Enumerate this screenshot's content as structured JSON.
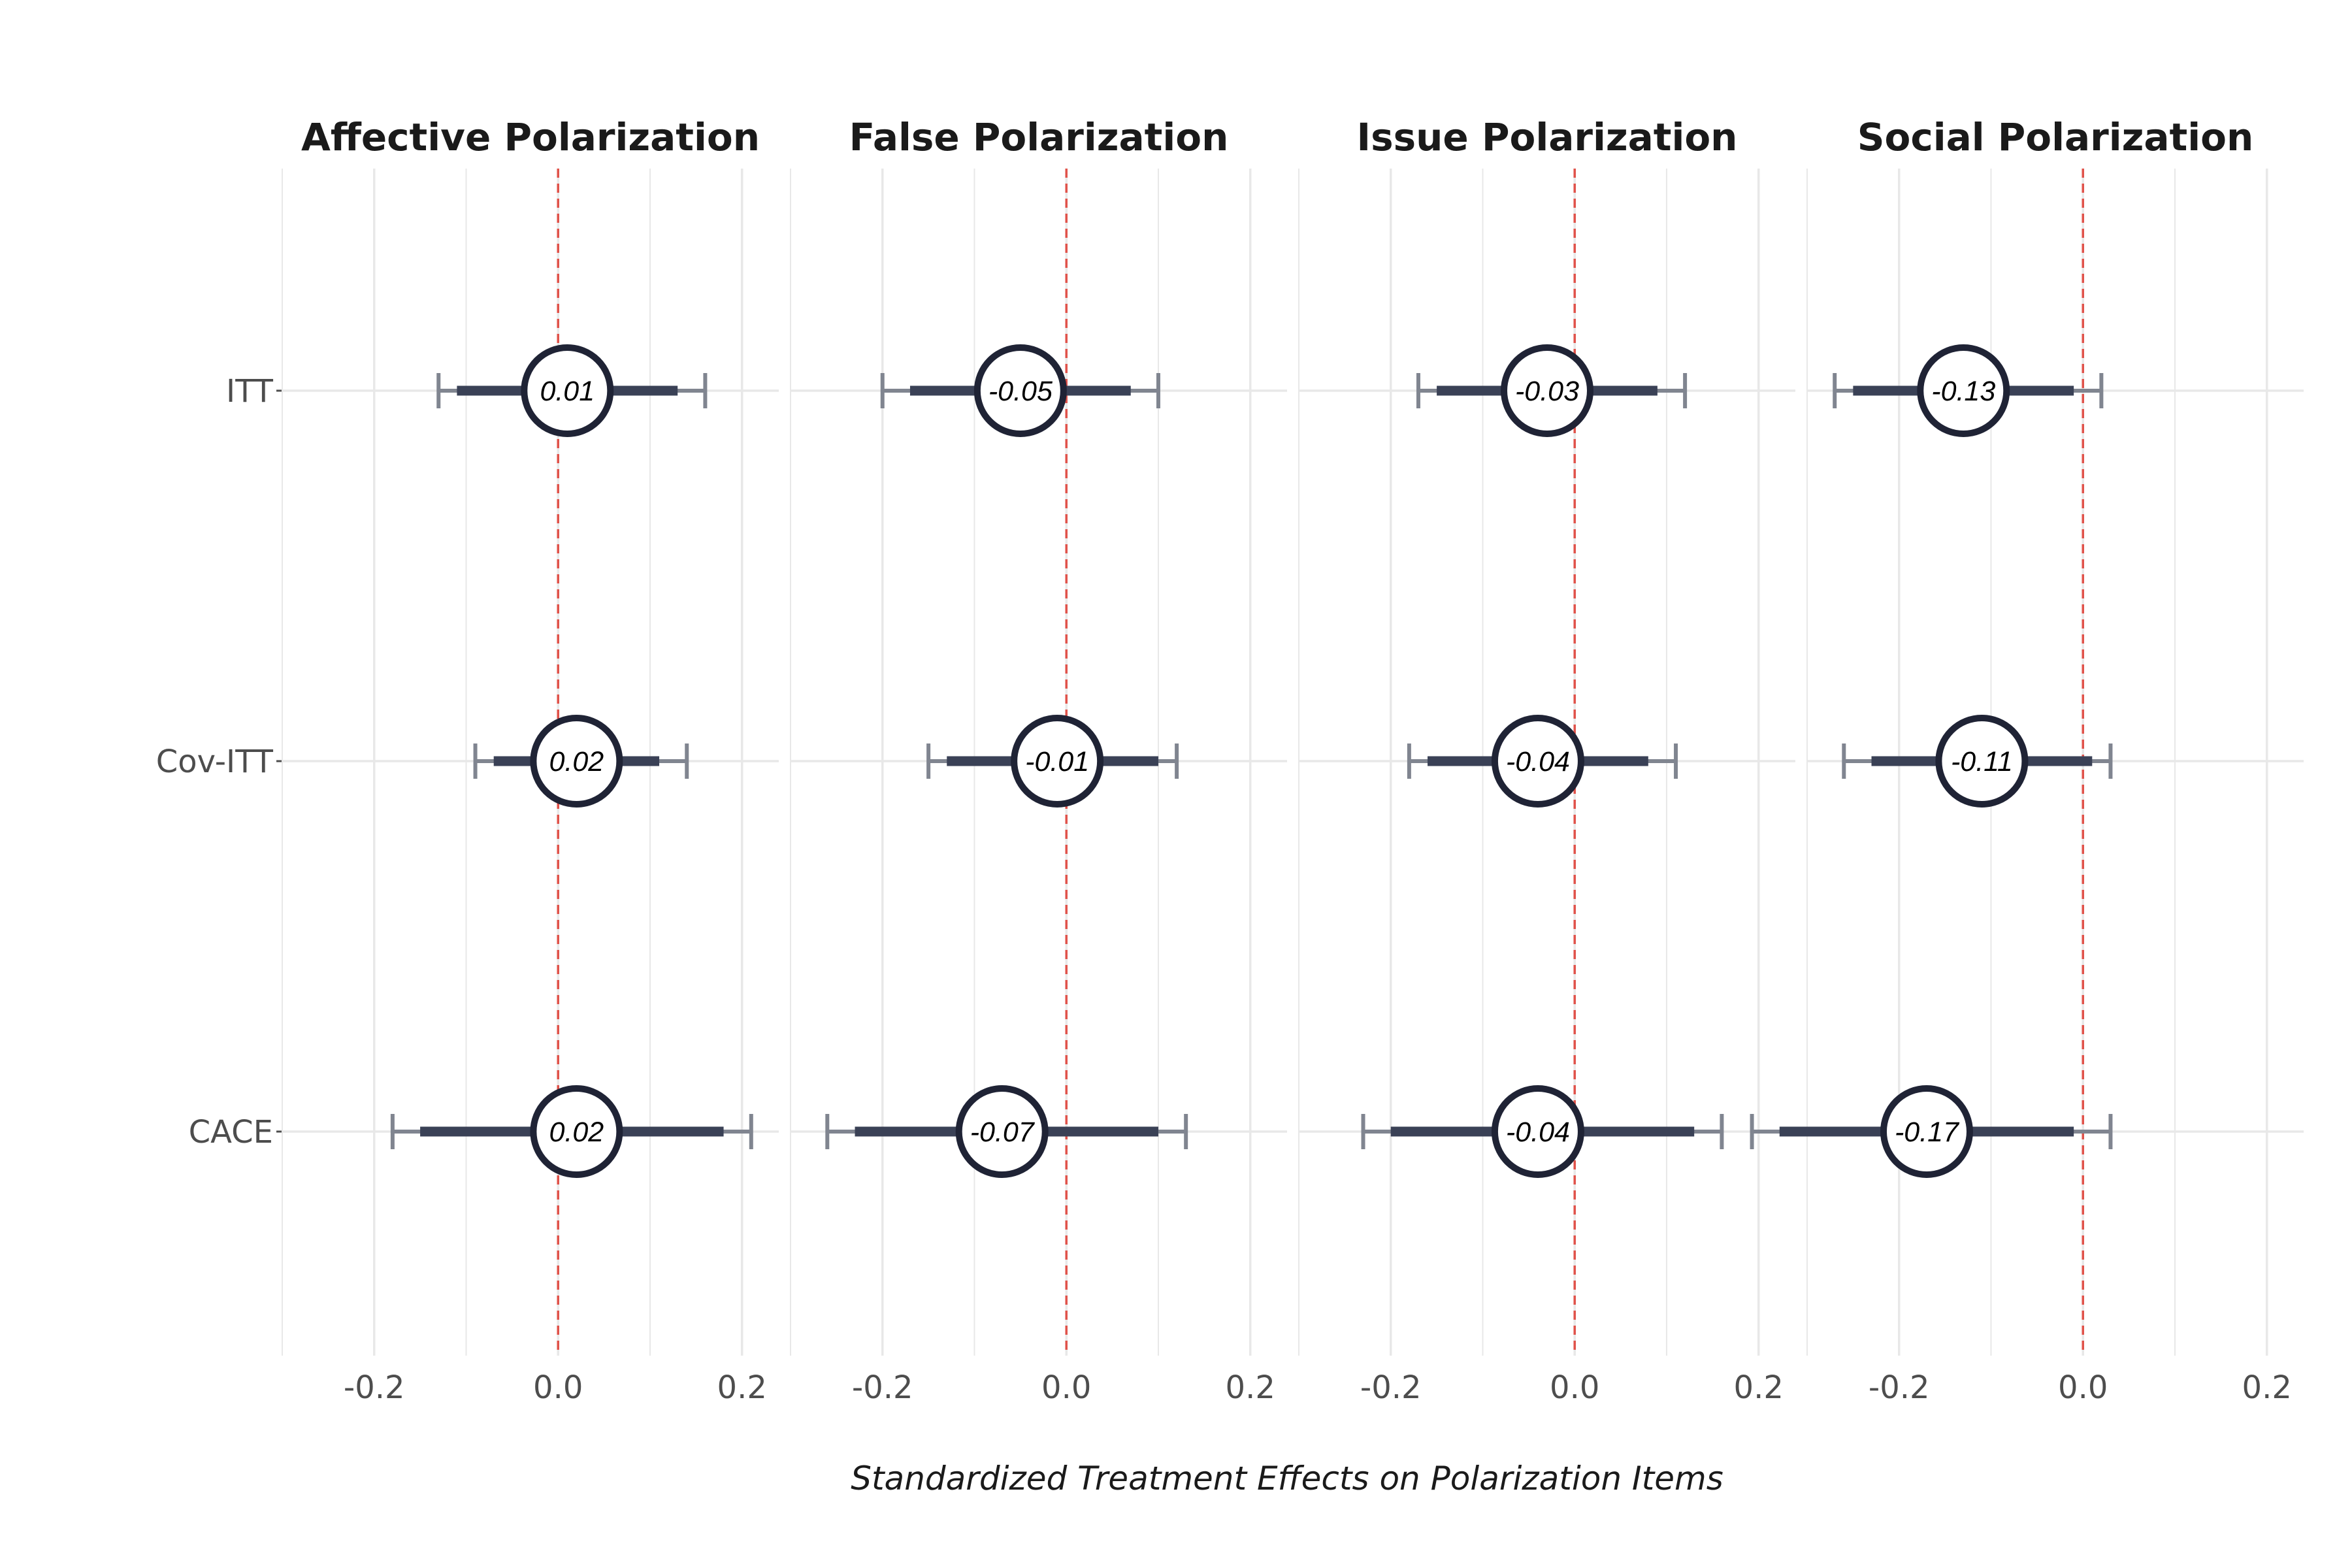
{
  "chart_data": {
    "type": "forest",
    "xlabel": "Standardized Treatment Effects on Polarization Items",
    "xlim": [
      -0.3,
      0.24
    ],
    "xticks": [
      -0.2,
      0.0,
      0.2
    ],
    "xtick_labels": [
      "-0.2",
      "0.0",
      "0.2"
    ],
    "reference_line": 0,
    "categories": [
      "ITT",
      "Cov-ITT",
      "CACE"
    ],
    "grid": true,
    "colors": {
      "estimate": "#1f2335",
      "inner_ci": "#3a4156",
      "outer_ci": "#808590",
      "reference": "#e0524a",
      "grid": "#e8e8e8"
    },
    "panels": [
      {
        "title": "Affective Polarization",
        "estimates": [
          {
            "label": "ITT",
            "estimate": 0.01,
            "text": "0.01",
            "ci90": [
              -0.11,
              0.13
            ],
            "ci95": [
              -0.13,
              0.16
            ]
          },
          {
            "label": "Cov-ITT",
            "estimate": 0.02,
            "text": "0.02",
            "ci90": [
              -0.07,
              0.11
            ],
            "ci95": [
              -0.09,
              0.14
            ]
          },
          {
            "label": "CACE",
            "estimate": 0.02,
            "text": "0.02",
            "ci90": [
              -0.15,
              0.18
            ],
            "ci95": [
              -0.18,
              0.21
            ]
          }
        ]
      },
      {
        "title": "False Polarization",
        "estimates": [
          {
            "label": "ITT",
            "estimate": -0.05,
            "text": "-0.05",
            "ci90": [
              -0.17,
              0.07
            ],
            "ci95": [
              -0.2,
              0.1
            ]
          },
          {
            "label": "Cov-ITT",
            "estimate": -0.01,
            "text": "-0.01",
            "ci90": [
              -0.13,
              0.1
            ],
            "ci95": [
              -0.15,
              0.12
            ]
          },
          {
            "label": "CACE",
            "estimate": -0.07,
            "text": "-0.07",
            "ci90": [
              -0.23,
              0.1
            ],
            "ci95": [
              -0.26,
              0.13
            ]
          }
        ]
      },
      {
        "title": "Issue Polarization",
        "estimates": [
          {
            "label": "ITT",
            "estimate": -0.03,
            "text": "-0.03",
            "ci90": [
              -0.15,
              0.09
            ],
            "ci95": [
              -0.17,
              0.12
            ]
          },
          {
            "label": "Cov-ITT",
            "estimate": -0.04,
            "text": "-0.04",
            "ci90": [
              -0.16,
              0.08
            ],
            "ci95": [
              -0.18,
              0.11
            ]
          },
          {
            "label": "CACE",
            "estimate": -0.04,
            "text": "-0.04",
            "ci90": [
              -0.2,
              0.13
            ],
            "ci95": [
              -0.23,
              0.16
            ]
          }
        ]
      },
      {
        "title": "Social Polarization",
        "estimates": [
          {
            "label": "ITT",
            "estimate": -0.13,
            "text": "-0.13",
            "ci90": [
              -0.25,
              -0.01
            ],
            "ci95": [
              -0.27,
              0.02
            ]
          },
          {
            "label": "Cov-ITT",
            "estimate": -0.11,
            "text": "-0.11",
            "ci90": [
              -0.23,
              0.01
            ],
            "ci95": [
              -0.26,
              0.03
            ]
          },
          {
            "label": "CACE",
            "estimate": -0.17,
            "text": "-0.17",
            "ci90": [
              -0.33,
              -0.01
            ],
            "ci95": [
              -0.36,
              0.03
            ]
          }
        ]
      }
    ]
  }
}
